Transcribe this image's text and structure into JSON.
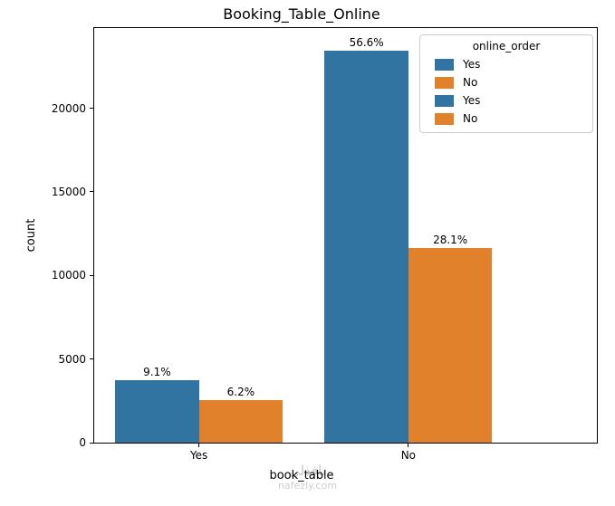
{
  "chart_data": {
    "type": "bar",
    "title": "Booking_Table_Online",
    "xlabel": "book_table",
    "ylabel": "count",
    "categories": [
      "Yes",
      "No"
    ],
    "series": [
      {
        "name": "Yes",
        "color": "#3274a1",
        "values": [
          3760,
          23430
        ],
        "bar_labels": [
          "9.1%",
          "56.6%"
        ]
      },
      {
        "name": "No",
        "color": "#e1812c",
        "values": [
          2560,
          11620
        ],
        "bar_labels": [
          "6.2%",
          "28.1%"
        ]
      }
    ],
    "yticks": [
      0,
      5000,
      10000,
      15000,
      20000
    ],
    "ylim": [
      0,
      24800
    ],
    "xlim": [
      -0.5,
      1.9
    ],
    "bar_group_width": 0.8,
    "grid": false,
    "legend": {
      "title": "online_order",
      "position": "upper-right",
      "entries": [
        {
          "label": "Yes",
          "color": "#3274a1"
        },
        {
          "label": "No",
          "color": "#e1812c"
        },
        {
          "label": "Yes",
          "color": "#3274a1"
        },
        {
          "label": "No",
          "color": "#e1812c"
        }
      ]
    }
  },
  "watermark": {
    "line1": "نافذلي",
    "line2": "nafezly.com"
  }
}
